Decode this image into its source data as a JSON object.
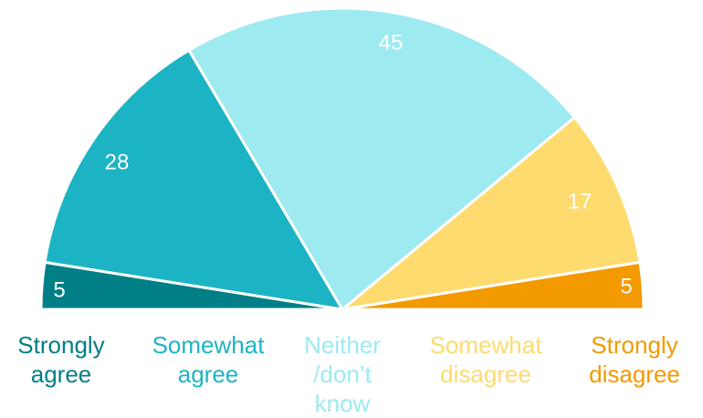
{
  "chart_data": {
    "type": "pie",
    "subtype": "semicircle",
    "title": "",
    "categories": [
      "Strongly\nagree",
      "Somewhat\nagree",
      "Neither\n/don’t\nknow",
      "Somewhat\ndisagree",
      "Strongly\ndisagree"
    ],
    "values": [
      5,
      28,
      45,
      17,
      5
    ],
    "colors": [
      "#007f86",
      "#1cb4c4",
      "#9eeaf1",
      "#fedb6e",
      "#f29a00"
    ],
    "label_colors": [
      "#007f86",
      "#1cb4c4",
      "#9eeaf1",
      "#fedb6e",
      "#f29a00"
    ],
    "value_label_color": "#ffffff",
    "legend": "bottom"
  }
}
